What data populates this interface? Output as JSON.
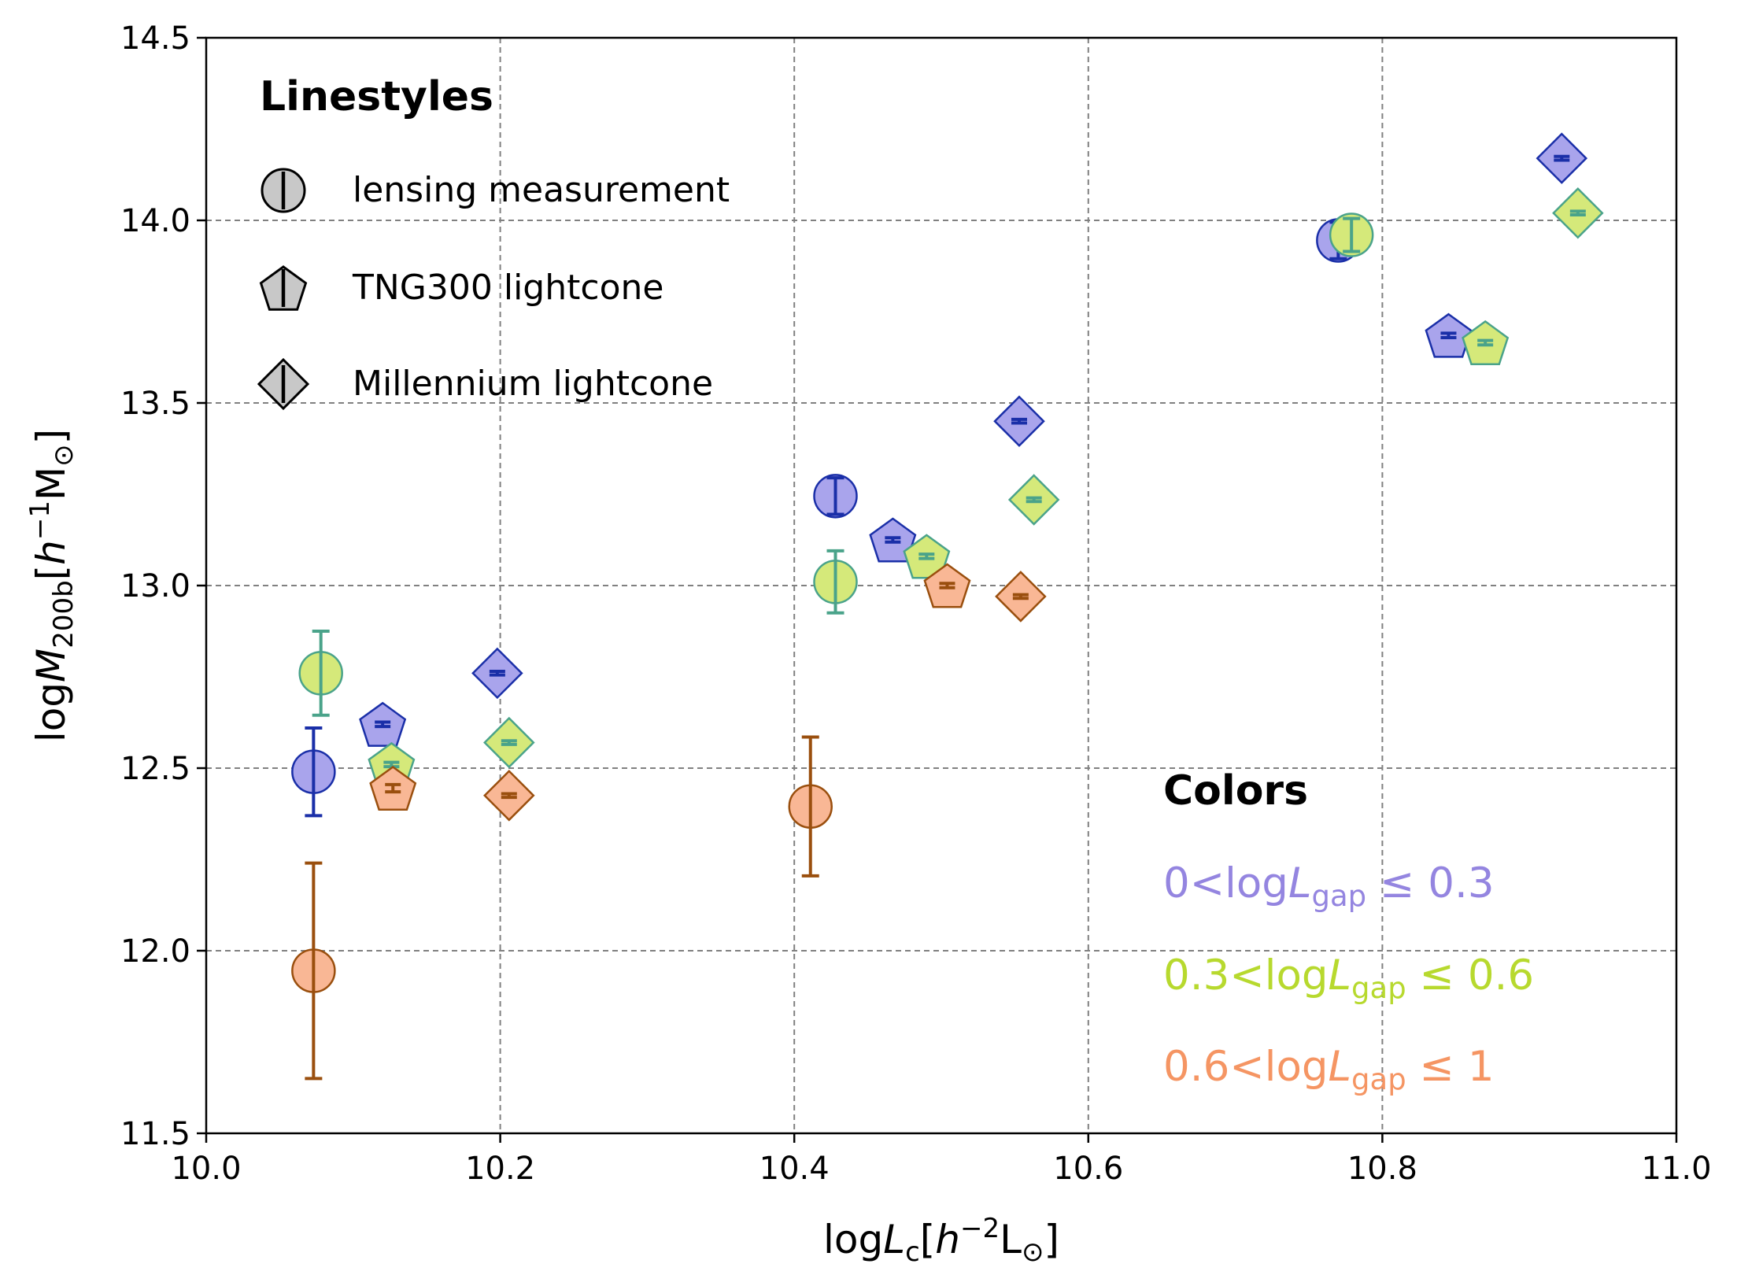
{
  "chart_data": {
    "type": "scatter",
    "title": "",
    "xlabel": {
      "prefix": "log",
      "var": "L",
      "sub": "c",
      "unit_open": "[",
      "unit_var": "h",
      "unit_exp": "−2",
      "unit_rest": "L",
      "unit_sun": "⊙",
      "unit_close": "]"
    },
    "ylabel": {
      "prefix": "log",
      "var": "M",
      "sub": "200b",
      "unit_open": "[",
      "unit_var": "h",
      "unit_exp": "−1",
      "unit_rest": "M",
      "unit_sun": "⊙",
      "unit_close": "]"
    },
    "xlim": [
      10.0,
      11.0
    ],
    "ylim": [
      11.5,
      14.5
    ],
    "xticks": [
      "10.0",
      "10.2",
      "10.4",
      "10.6",
      "10.8",
      "11.0"
    ],
    "yticks": [
      "11.5",
      "12.0",
      "12.5",
      "13.0",
      "13.5",
      "14.0",
      "14.5"
    ],
    "grid": true,
    "colors": {
      "low": {
        "fill": "#a9a4ec",
        "edge": "#1a2fa8",
        "text": "#9485e0"
      },
      "mid": {
        "fill": "#d5e97a",
        "edge": "#4aa38a",
        "text": "#b7d92e"
      },
      "high": {
        "fill": "#f9b795",
        "edge": "#9a4f0e",
        "text": "#f59563"
      }
    },
    "series": [
      {
        "name": "lensing measurement",
        "marker": "circle",
        "color": "low",
        "points": [
          {
            "x": 10.073,
            "y": 12.49,
            "err": 0.12
          },
          {
            "x": 10.428,
            "y": 13.245,
            "err": 0.05
          },
          {
            "x": 10.77,
            "y": 13.945,
            "err": 0.05
          }
        ]
      },
      {
        "name": "lensing measurement",
        "marker": "circle",
        "color": "mid",
        "points": [
          {
            "x": 10.078,
            "y": 12.76,
            "err": 0.115
          },
          {
            "x": 10.428,
            "y": 13.01,
            "err": 0.085
          },
          {
            "x": 10.779,
            "y": 13.96,
            "err": 0.045
          }
        ]
      },
      {
        "name": "lensing measurement",
        "marker": "circle",
        "color": "high",
        "points": [
          {
            "x": 10.073,
            "y": 11.945,
            "err": 0.295
          },
          {
            "x": 10.411,
            "y": 12.395,
            "err": 0.19
          }
        ]
      },
      {
        "name": "TNG300 lightcone",
        "marker": "pentagon",
        "color": "low",
        "points": [
          {
            "x": 10.12,
            "y": 12.62,
            "err": 0.006
          },
          {
            "x": 10.467,
            "y": 13.125,
            "err": 0.006
          },
          {
            "x": 10.845,
            "y": 13.685,
            "err": 0.006
          }
        ]
      },
      {
        "name": "TNG300 lightcone",
        "marker": "pentagon",
        "color": "mid",
        "points": [
          {
            "x": 10.126,
            "y": 12.51,
            "err": 0.006
          },
          {
            "x": 10.49,
            "y": 13.08,
            "err": 0.006
          },
          {
            "x": 10.87,
            "y": 13.665,
            "err": 0.006
          }
        ]
      },
      {
        "name": "TNG300 lightcone",
        "marker": "pentagon",
        "color": "high",
        "points": [
          {
            "x": 10.127,
            "y": 12.445,
            "err": 0.01
          },
          {
            "x": 10.504,
            "y": 13.0,
            "err": 0.006
          }
        ]
      },
      {
        "name": "Millennium lightcone",
        "marker": "diamond",
        "color": "low",
        "points": [
          {
            "x": 10.198,
            "y": 12.76,
            "err": 0.005
          },
          {
            "x": 10.553,
            "y": 13.45,
            "err": 0.005
          },
          {
            "x": 10.922,
            "y": 14.17,
            "err": 0.005
          }
        ]
      },
      {
        "name": "Millennium lightcone",
        "marker": "diamond",
        "color": "mid",
        "points": [
          {
            "x": 10.206,
            "y": 12.57,
            "err": 0.005
          },
          {
            "x": 10.563,
            "y": 13.235,
            "err": 0.005
          },
          {
            "x": 10.933,
            "y": 14.02,
            "err": 0.005
          }
        ]
      },
      {
        "name": "Millennium lightcone",
        "marker": "diamond",
        "color": "high",
        "points": [
          {
            "x": 10.206,
            "y": 12.425,
            "err": 0.005
          },
          {
            "x": 10.554,
            "y": 12.97,
            "err": 0.005
          }
        ]
      }
    ],
    "legend_linestyles": {
      "title": "Linestyles",
      "position": "top-left",
      "entries": [
        {
          "marker": "circle",
          "label": "lensing measurement"
        },
        {
          "marker": "pentagon",
          "label": "TNG300 lightcone"
        },
        {
          "marker": "diamond",
          "label": "Millennium lightcone"
        }
      ]
    },
    "legend_colors": {
      "title": "Colors",
      "position": "bottom-right",
      "entries": [
        {
          "color": "low",
          "lo": "0",
          "hi": "0.3"
        },
        {
          "color": "mid",
          "lo": "0.3",
          "hi": "0.6"
        },
        {
          "color": "high",
          "lo": "0.6",
          "hi": "1"
        }
      ],
      "label_parts": {
        "lt": "<",
        "prefix": "log",
        "var": "L",
        "sub": "gap",
        "le": " ≤ "
      }
    }
  }
}
